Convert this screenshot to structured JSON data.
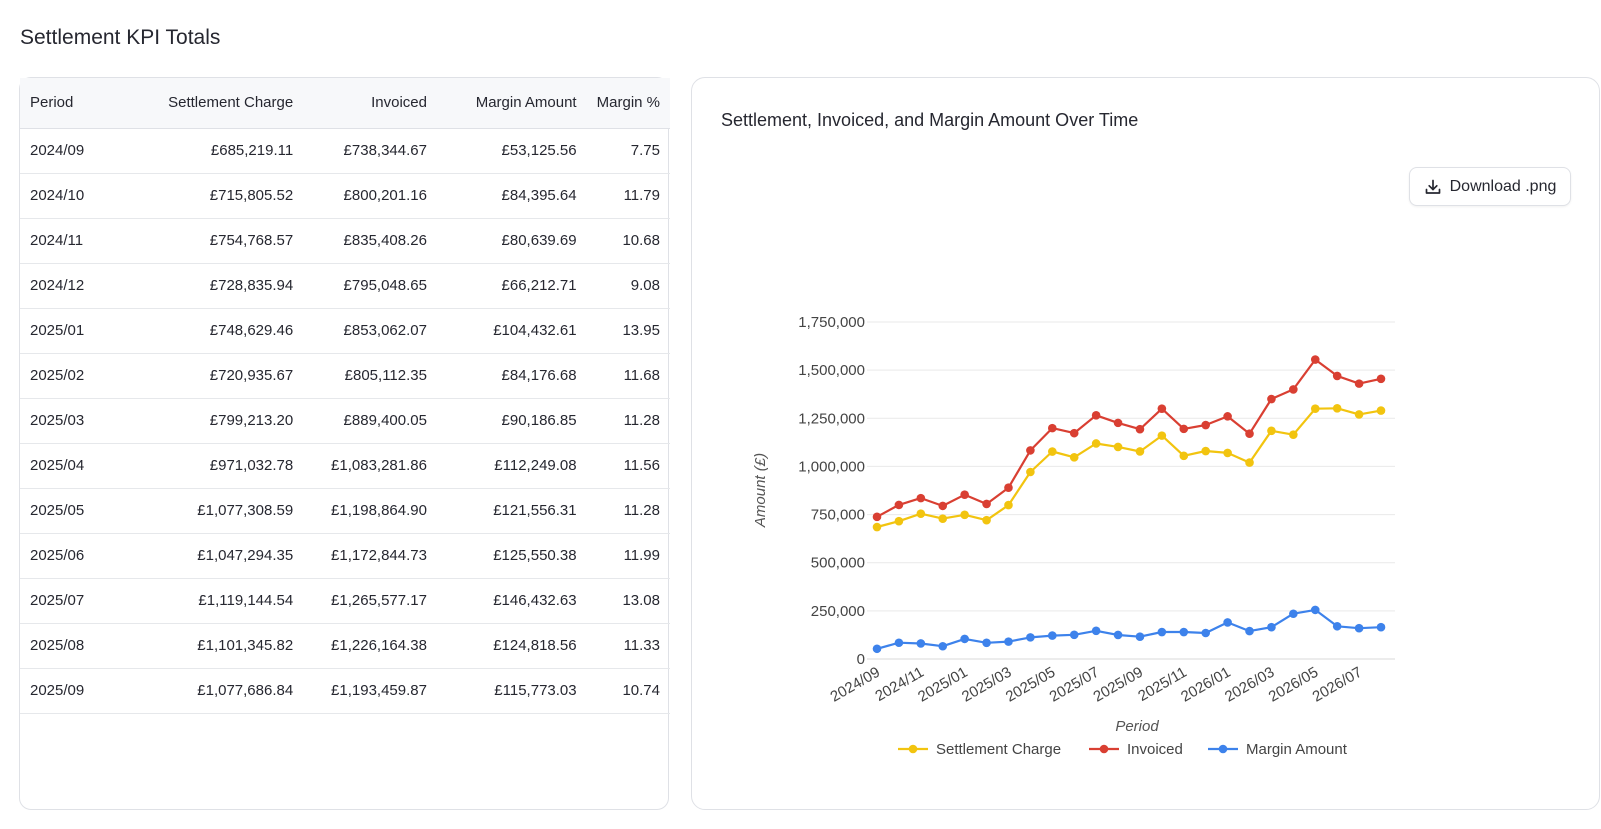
{
  "page": {
    "title": "Settlement KPI Totals"
  },
  "table": {
    "columns": [
      "Period",
      "Settlement Charge",
      "Invoiced",
      "Margin Amount",
      "Margin %"
    ],
    "rows": [
      [
        "2024/09",
        "£685,219.11",
        "£738,344.67",
        "£53,125.56",
        "7.75"
      ],
      [
        "2024/10",
        "£715,805.52",
        "£800,201.16",
        "£84,395.64",
        "11.79"
      ],
      [
        "2024/11",
        "£754,768.57",
        "£835,408.26",
        "£80,639.69",
        "10.68"
      ],
      [
        "2024/12",
        "£728,835.94",
        "£795,048.65",
        "£66,212.71",
        "9.08"
      ],
      [
        "2025/01",
        "£748,629.46",
        "£853,062.07",
        "£104,432.61",
        "13.95"
      ],
      [
        "2025/02",
        "£720,935.67",
        "£805,112.35",
        "£84,176.68",
        "11.68"
      ],
      [
        "2025/03",
        "£799,213.20",
        "£889,400.05",
        "£90,186.85",
        "11.28"
      ],
      [
        "2025/04",
        "£971,032.78",
        "£1,083,281.86",
        "£112,249.08",
        "11.56"
      ],
      [
        "2025/05",
        "£1,077,308.59",
        "£1,198,864.90",
        "£121,556.31",
        "11.28"
      ],
      [
        "2025/06",
        "£1,047,294.35",
        "£1,172,844.73",
        "£125,550.38",
        "11.99"
      ],
      [
        "2025/07",
        "£1,119,144.54",
        "£1,265,577.17",
        "£146,432.63",
        "13.08"
      ],
      [
        "2025/08",
        "£1,101,345.82",
        "£1,226,164.38",
        "£124,818.56",
        "11.33"
      ],
      [
        "2025/09",
        "£1,077,686.84",
        "£1,193,459.87",
        "£115,773.03",
        "10.74"
      ]
    ]
  },
  "chart_panel": {
    "download_label": "Download .png",
    "download_icon": "download-icon"
  },
  "chart_data": {
    "type": "line",
    "title": "Settlement, Invoiced, and Margin Amount Over Time",
    "xlabel": "Period",
    "ylabel": "Amount (£)",
    "ylim": [
      0,
      1750000
    ],
    "yticks": [
      0,
      250000,
      500000,
      750000,
      1000000,
      1250000,
      1500000,
      1750000
    ],
    "ytick_labels": [
      "0",
      "250,000",
      "500,000",
      "750,000",
      "1,000,000",
      "1,250,000",
      "1,500,000",
      "1,750,000"
    ],
    "x": [
      "2024/09",
      "2024/10",
      "2024/11",
      "2024/12",
      "2025/01",
      "2025/02",
      "2025/03",
      "2025/04",
      "2025/05",
      "2025/06",
      "2025/07",
      "2025/08",
      "2025/09",
      "2025/10",
      "2025/11",
      "2025/12",
      "2026/01",
      "2026/02",
      "2026/03",
      "2026/04",
      "2026/05",
      "2026/06",
      "2026/07",
      "2026/08"
    ],
    "xtick_labels": [
      "2024/09",
      "2024/11",
      "2025/01",
      "2025/03",
      "2025/05",
      "2025/07",
      "2025/09",
      "2025/11",
      "2026/01",
      "2026/03",
      "2026/05",
      "2026/07"
    ],
    "grid": true,
    "legend_position": "bottom",
    "series": [
      {
        "name": "Settlement Charge",
        "color": "#f2c40f",
        "values": [
          685219,
          715806,
          754769,
          728836,
          748629,
          720936,
          799213,
          971033,
          1077309,
          1047294,
          1119145,
          1101346,
          1077687,
          1160000,
          1055000,
          1080000,
          1070000,
          1020000,
          1185000,
          1165000,
          1300000,
          1302000,
          1270000,
          1290000
        ]
      },
      {
        "name": "Invoiced",
        "color": "#d93f32",
        "values": [
          738345,
          800201,
          835408,
          795049,
          853062,
          805112,
          889400,
          1083282,
          1198865,
          1172845,
          1265577,
          1226164,
          1193460,
          1300000,
          1195000,
          1215000,
          1260000,
          1170000,
          1350000,
          1400000,
          1555000,
          1470000,
          1430000,
          1455000
        ]
      },
      {
        "name": "Margin Amount",
        "color": "#3d82eb",
        "values": [
          53126,
          84396,
          80640,
          66213,
          104433,
          84177,
          90187,
          112249,
          121556,
          125550,
          146433,
          124819,
          115773,
          140000,
          140000,
          135000,
          190000,
          145000,
          165000,
          235000,
          255000,
          170000,
          160000,
          165000
        ]
      }
    ]
  }
}
